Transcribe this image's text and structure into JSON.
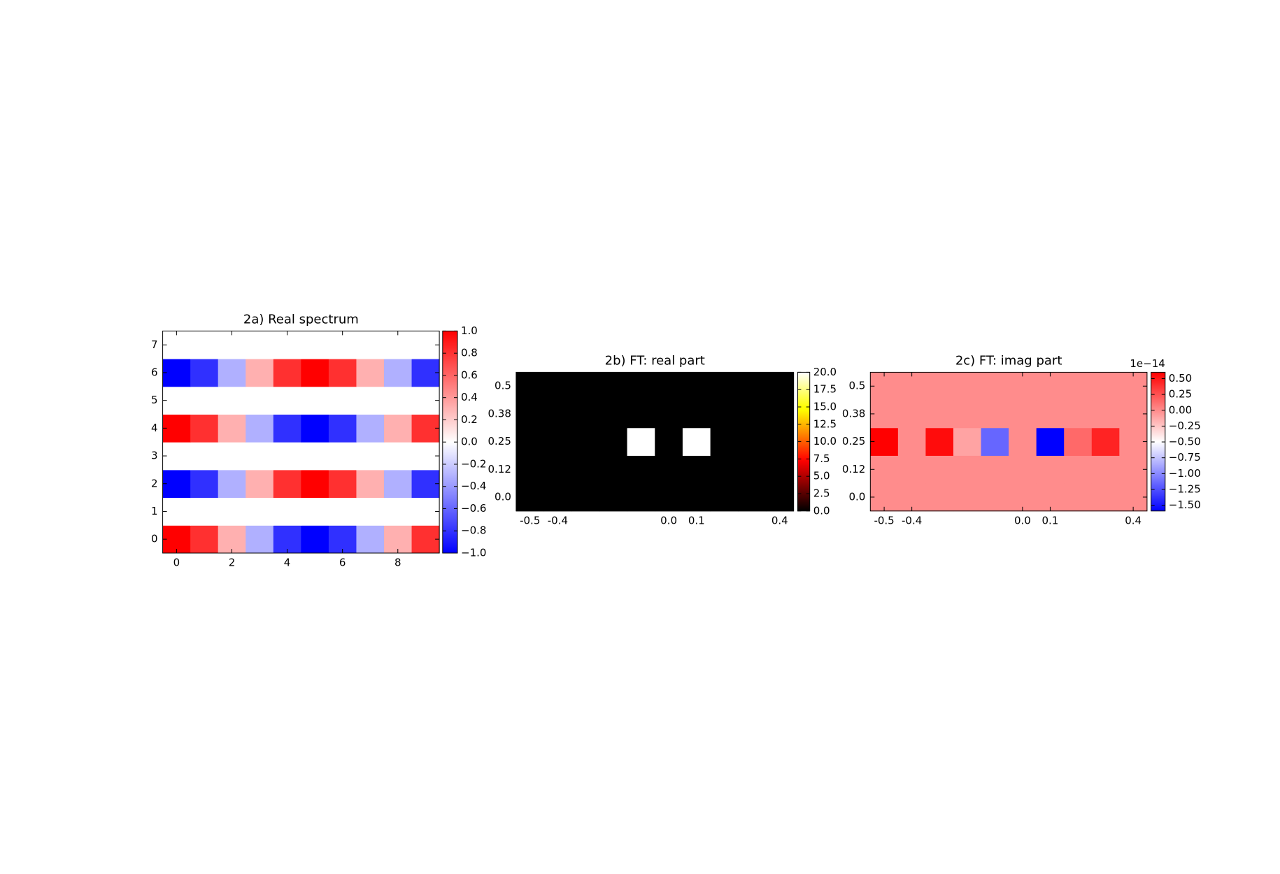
{
  "chart_data": [
    {
      "type": "heatmap",
      "title": "2a) Real spectrum",
      "colormap": "bwr",
      "x": [
        0,
        1,
        2,
        3,
        4,
        5,
        6,
        7,
        8,
        9
      ],
      "y": [
        0,
        1,
        2,
        3,
        4,
        5,
        6,
        7
      ],
      "values": [
        [
          1,
          0.81,
          0.31,
          -0.31,
          -0.81,
          -1,
          -0.81,
          -0.31,
          0.31,
          0.81
        ],
        [
          0,
          0,
          0,
          0,
          0,
          0,
          0,
          0,
          0,
          0
        ],
        [
          -1,
          -0.81,
          -0.31,
          0.31,
          0.81,
          1,
          0.81,
          0.31,
          -0.31,
          -0.81
        ],
        [
          0,
          0,
          0,
          0,
          0,
          0,
          0,
          0,
          0,
          0
        ],
        [
          1,
          0.81,
          0.31,
          -0.31,
          -0.81,
          -1,
          -0.81,
          -0.31,
          0.31,
          0.81
        ],
        [
          0,
          0,
          0,
          0,
          0,
          0,
          0,
          0,
          0,
          0
        ],
        [
          -1,
          -0.81,
          -0.31,
          0.31,
          0.81,
          1,
          0.81,
          0.31,
          -0.31,
          -0.81
        ],
        [
          0,
          0,
          0,
          0,
          0,
          0,
          0,
          0,
          0,
          0
        ]
      ],
      "xlim": [
        -0.5,
        9.5
      ],
      "ylim": [
        -0.5,
        7.5
      ],
      "xticks": [
        0,
        2,
        4,
        6,
        8
      ],
      "yticks": [
        0,
        1,
        2,
        3,
        4,
        5,
        6,
        7
      ],
      "clim": [
        -1,
        1
      ],
      "cticks": [
        {
          "value": 1,
          "label": "1.0"
        },
        0.8,
        0.6,
        0.4,
        0.2,
        {
          "value": 0,
          "label": "0.0"
        },
        {
          "value": -0.2,
          "label": "−0.2"
        },
        {
          "value": -0.4,
          "label": "−0.4"
        },
        {
          "value": -0.6,
          "label": "−0.6"
        },
        {
          "value": -0.8,
          "label": "−0.8"
        },
        {
          "value": -1,
          "label": "−1.0"
        }
      ]
    },
    {
      "type": "heatmap",
      "title": "2b) FT: real part",
      "colormap": "hot",
      "x": [
        -0.5,
        -0.4,
        -0.3,
        -0.2,
        -0.1,
        0,
        0.1,
        0.2,
        0.3,
        0.4
      ],
      "y": [
        0,
        0.125,
        0.25,
        0.375,
        0.5
      ],
      "values": [
        [
          0,
          0,
          0,
          0,
          0,
          0,
          0,
          0,
          0,
          0
        ],
        [
          0,
          0,
          0,
          0,
          0,
          0,
          0,
          0,
          0,
          0
        ],
        [
          0,
          0,
          0,
          0,
          20,
          0,
          20,
          0,
          0,
          0
        ],
        [
          0,
          0,
          0,
          0,
          0,
          0,
          0,
          0,
          0,
          0
        ],
        [
          0,
          0,
          0,
          0,
          0,
          0,
          0,
          0,
          0,
          0
        ]
      ],
      "xlim": [
        -0.55,
        0.45
      ],
      "ylim": [
        -0.0625,
        0.5625
      ],
      "xticks": [
        -0.5,
        -0.4,
        {
          "value": 0,
          "label": "0.0"
        },
        0.1,
        0.4
      ],
      "yticks": [
        {
          "value": 0,
          "label": "0.0"
        },
        {
          "value": 0.125,
          "label": "0.12"
        },
        0.25,
        {
          "value": 0.375,
          "label": "0.38"
        },
        0.5
      ],
      "clim": [
        0,
        20
      ],
      "cticks": [
        {
          "value": 0,
          "label": "0.0"
        },
        2.5,
        {
          "value": 5,
          "label": "5.0"
        },
        7.5,
        {
          "value": 10,
          "label": "10.0"
        },
        12.5,
        {
          "value": 15,
          "label": "15.0"
        },
        17.5,
        {
          "value": 20,
          "label": "20.0"
        }
      ]
    },
    {
      "type": "heatmap",
      "title": "2c) FT: imag part",
      "colormap": "bwr",
      "offset_label": "1e−14",
      "x": [
        -0.5,
        -0.4,
        -0.3,
        -0.2,
        -0.1,
        0,
        0.1,
        0.2,
        0.3,
        0.4
      ],
      "y": [
        0,
        0.125,
        0.25,
        0.375,
        0.5
      ],
      "values": [
        [
          0,
          0,
          0,
          0,
          0,
          0,
          0,
          0,
          0,
          0
        ],
        [
          0,
          0,
          0,
          0,
          0,
          0,
          0,
          0,
          0,
          0
        ],
        [
          0.6,
          0,
          0.55,
          -0.1,
          -1.15,
          0,
          -1.59,
          0.15,
          0.45,
          0
        ],
        [
          0,
          0,
          0,
          0,
          0,
          0,
          0,
          0,
          0,
          0
        ],
        [
          0,
          0,
          0,
          0,
          0,
          0,
          0,
          0,
          0,
          0
        ]
      ],
      "xlim": [
        -0.55,
        0.45
      ],
      "ylim": [
        -0.0625,
        0.5625
      ],
      "xticks": [
        -0.5,
        -0.4,
        {
          "value": 0,
          "label": "0.0"
        },
        0.1,
        0.4
      ],
      "yticks": [
        {
          "value": 0,
          "label": "0.0"
        },
        {
          "value": 0.125,
          "label": "0.12"
        },
        0.25,
        {
          "value": 0.375,
          "label": "0.38"
        },
        0.5
      ],
      "clim": [
        -1.59,
        0.6
      ],
      "cticks": [
        {
          "value": 0.5,
          "label": "0.50"
        },
        0.25,
        {
          "value": 0,
          "label": "0.00"
        },
        {
          "value": -0.25,
          "label": "−0.25"
        },
        {
          "value": -0.5,
          "label": "−0.50"
        },
        {
          "value": -0.75,
          "label": "−0.75"
        },
        {
          "value": -1,
          "label": "−1.00"
        },
        {
          "value": -1.25,
          "label": "−1.25"
        },
        {
          "value": -1.5,
          "label": "−1.50"
        }
      ]
    }
  ]
}
